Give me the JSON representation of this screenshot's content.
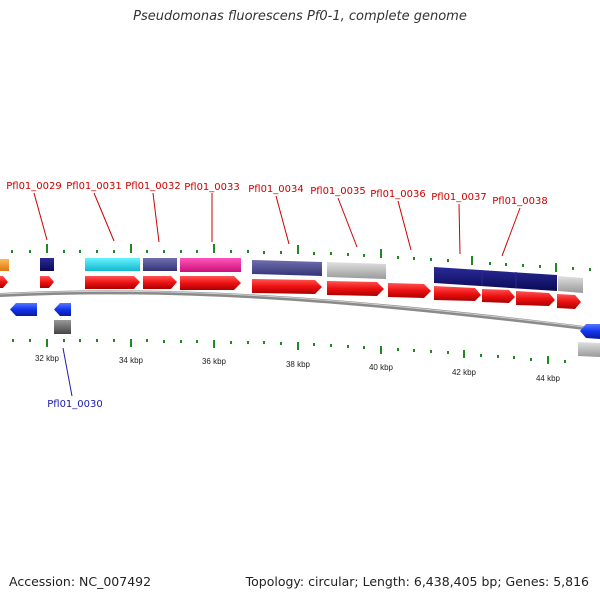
{
  "title": "Pseudomonas fluorescens Pf0-1, complete genome",
  "footer": {
    "accession": "Accession: NC_007492",
    "summary": "Topology: circular; Length: 6,438,405 bp; Genes: 5,816"
  },
  "scale_labels": [
    "32 kbp",
    "34 kbp",
    "36 kbp",
    "38 kbp",
    "40 kbp",
    "42 kbp",
    "44 kbp"
  ],
  "gene_labels_top": [
    "Pfl01_0029",
    "Pfl01_0031",
    "Pfl01_0032",
    "Pfl01_0033",
    "Pfl01_0034",
    "Pfl01_0035",
    "Pfl01_0036",
    "Pfl01_0037",
    "Pfl01_0038"
  ],
  "gene_labels_bottom": [
    "Pfl01_0030"
  ],
  "colors": {
    "forward_gene": "#ee1111",
    "reverse_gene": "#1133ee",
    "label_forward": "#cc0000",
    "label_reverse": "#1a1aa8",
    "tick": "#228822",
    "backbone": "#888888",
    "cyan": "#22ddee",
    "slate": "#4a4a8f",
    "magenta": "#ee2299",
    "navy": "#111177",
    "silver": "#bbbbbb",
    "orange": "#ff9922",
    "dark_gray": "#666666"
  }
}
